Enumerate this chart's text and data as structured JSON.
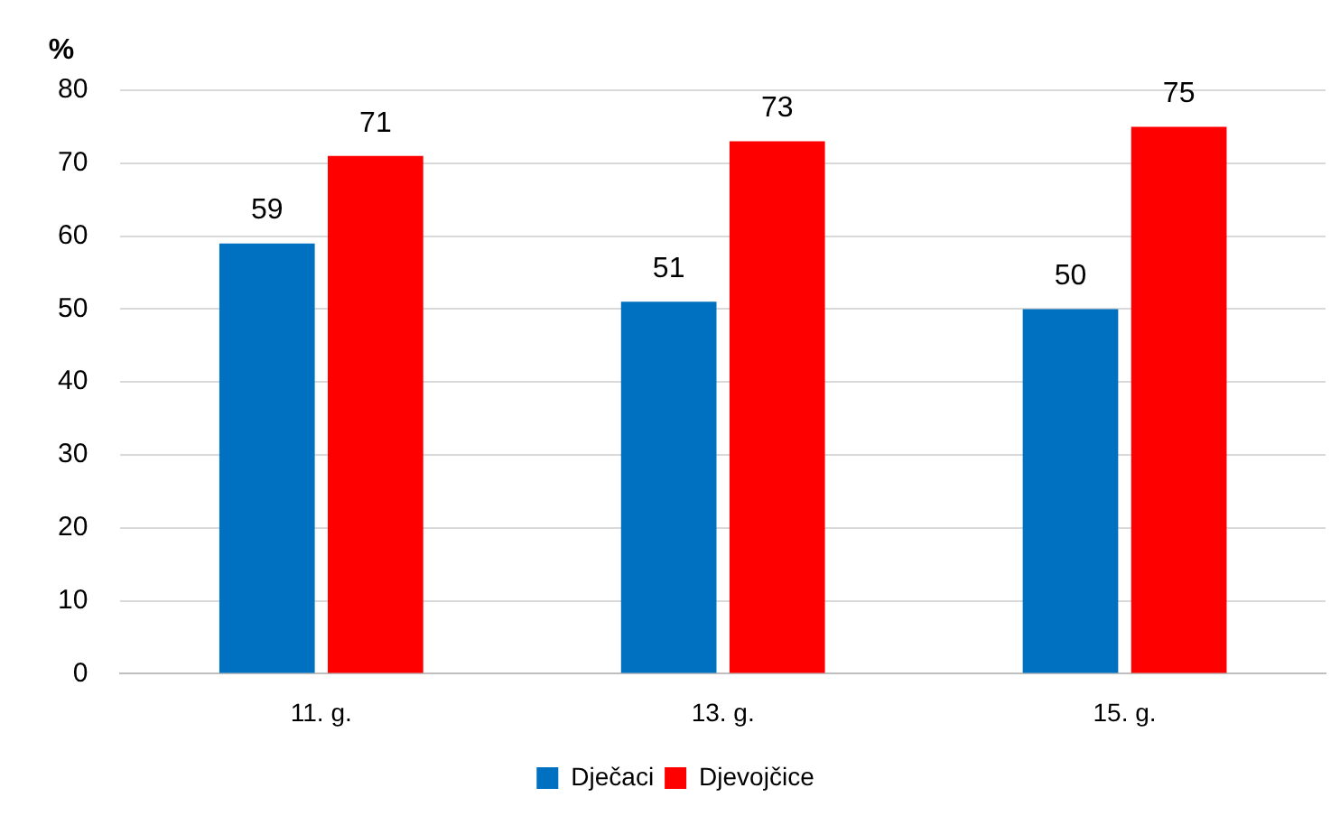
{
  "chart_data": {
    "type": "bar",
    "ylabel": "%",
    "categories": [
      "11. g.",
      "13. g.",
      "15. g."
    ],
    "series": [
      {
        "name": "Dječaci",
        "color": "#0070c0",
        "values": [
          59,
          51,
          50
        ]
      },
      {
        "name": "Djevojčice",
        "color": "#ff0000",
        "values": [
          71,
          73,
          75
        ]
      }
    ],
    "ylim": [
      0,
      80
    ],
    "yticks": [
      0,
      10,
      20,
      30,
      40,
      50,
      60,
      70,
      80
    ],
    "grid": "y",
    "legend": "bottom",
    "data_labels": true
  }
}
